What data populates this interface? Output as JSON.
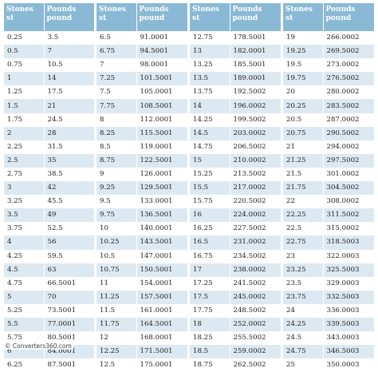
{
  "headers": {
    "stones_1": "Stones",
    "stones_2": "st",
    "pounds_1": "Pounds",
    "pounds_2": "pound"
  },
  "tables": [
    {
      "rows": [
        [
          "0.25",
          "3.5"
        ],
        [
          "0.5",
          "7"
        ],
        [
          "0.75",
          "10.5"
        ],
        [
          "1",
          "14"
        ],
        [
          "1.25",
          "17.5"
        ],
        [
          "1.5",
          "21"
        ],
        [
          "1.75",
          "24.5"
        ],
        [
          "2",
          "28"
        ],
        [
          "2.25",
          "31.5"
        ],
        [
          "2.5",
          "35"
        ],
        [
          "2.75",
          "38.5"
        ],
        [
          "3",
          "42"
        ],
        [
          "3.25",
          "45.5"
        ],
        [
          "3.5",
          "49"
        ],
        [
          "3.75",
          "52.5"
        ],
        [
          "4",
          "56"
        ],
        [
          "4.25",
          "59.5"
        ],
        [
          "4.5",
          "63"
        ],
        [
          "4.75",
          "66.5001"
        ],
        [
          "5",
          "70"
        ],
        [
          "5.25",
          "73.5001"
        ],
        [
          "5.5",
          "77.0001"
        ],
        [
          "5.75",
          "80.5001"
        ],
        [
          "6",
          "84.0001"
        ],
        [
          "6.25",
          "87.5001"
        ]
      ]
    },
    {
      "rows": [
        [
          "6.5",
          "91.0001"
        ],
        [
          "6.75",
          "94.5001"
        ],
        [
          "7",
          "98.0001"
        ],
        [
          "7.25",
          "101.5001"
        ],
        [
          "7.5",
          "105.0001"
        ],
        [
          "7.75",
          "108.5001"
        ],
        [
          "8",
          "112.0001"
        ],
        [
          "8.25",
          "115.5001"
        ],
        [
          "8.5",
          "119.0001"
        ],
        [
          "8.75",
          "122.5001"
        ],
        [
          "9",
          "126.0001"
        ],
        [
          "9.25",
          "129.5001"
        ],
        [
          "9.5",
          "133.0001"
        ],
        [
          "9.75",
          "136.5001"
        ],
        [
          "10",
          "140.0001"
        ],
        [
          "10.25",
          "143.5001"
        ],
        [
          "10.5",
          "147.0001"
        ],
        [
          "10.75",
          "150.5001"
        ],
        [
          "11",
          "154.0001"
        ],
        [
          "11.25",
          "157.5001"
        ],
        [
          "11.5",
          "161.0001"
        ],
        [
          "11.75",
          "164.5001"
        ],
        [
          "12",
          "168.0001"
        ],
        [
          "12.25",
          "171.5001"
        ],
        [
          "12.5",
          "175.0001"
        ]
      ]
    },
    {
      "rows": [
        [
          "12.75",
          "178.5001"
        ],
        [
          "13",
          "182.0001"
        ],
        [
          "13.25",
          "185.5001"
        ],
        [
          "13.5",
          "189.0001"
        ],
        [
          "13.75",
          "192.5002"
        ],
        [
          "14",
          "196.0002"
        ],
        [
          "14.25",
          "199.5002"
        ],
        [
          "14.5",
          "203.0002"
        ],
        [
          "14.75",
          "206.5002"
        ],
        [
          "15",
          "210.0002"
        ],
        [
          "15.25",
          "213.5002"
        ],
        [
          "15.5",
          "217.0002"
        ],
        [
          "15.75",
          "220.5002"
        ],
        [
          "16",
          "224.0002"
        ],
        [
          "16.25",
          "227.5002"
        ],
        [
          "16.5",
          "231.0002"
        ],
        [
          "16.75",
          "234.5002"
        ],
        [
          "17",
          "238.0002"
        ],
        [
          "17.25",
          "241.5002"
        ],
        [
          "17.5",
          "245.0002"
        ],
        [
          "17.75",
          "248.5002"
        ],
        [
          "18",
          "252.0002"
        ],
        [
          "18.25",
          "255.5002"
        ],
        [
          "18.5",
          "259.0002"
        ],
        [
          "18.75",
          "262.5002"
        ]
      ]
    },
    {
      "rows": [
        [
          "19",
          "266.0002"
        ],
        [
          "19.25",
          "269.5002"
        ],
        [
          "19.5",
          "273.0002"
        ],
        [
          "19.75",
          "276.5002"
        ],
        [
          "20",
          "280.0002"
        ],
        [
          "20.25",
          "283.5002"
        ],
        [
          "20.5",
          "287.0002"
        ],
        [
          "20.75",
          "290.5002"
        ],
        [
          "21",
          "294.0002"
        ],
        [
          "21.25",
          "297.5002"
        ],
        [
          "21.5",
          "301.0002"
        ],
        [
          "21.75",
          "304.5002"
        ],
        [
          "22",
          "308.0002"
        ],
        [
          "22.25",
          "311.5002"
        ],
        [
          "22.5",
          "315.0002"
        ],
        [
          "22.75",
          "318.5003"
        ],
        [
          "23",
          "322.0003"
        ],
        [
          "23.25",
          "325.5003"
        ],
        [
          "23.5",
          "329.0003"
        ],
        [
          "23.75",
          "332.5003"
        ],
        [
          "24",
          "336.0003"
        ],
        [
          "24.25",
          "339.5003"
        ],
        [
          "24.5",
          "343.0003"
        ],
        [
          "24.75",
          "346.5003"
        ],
        [
          "25",
          "350.0003"
        ]
      ]
    }
  ],
  "footer": {
    "text": "© Converters360.com"
  }
}
